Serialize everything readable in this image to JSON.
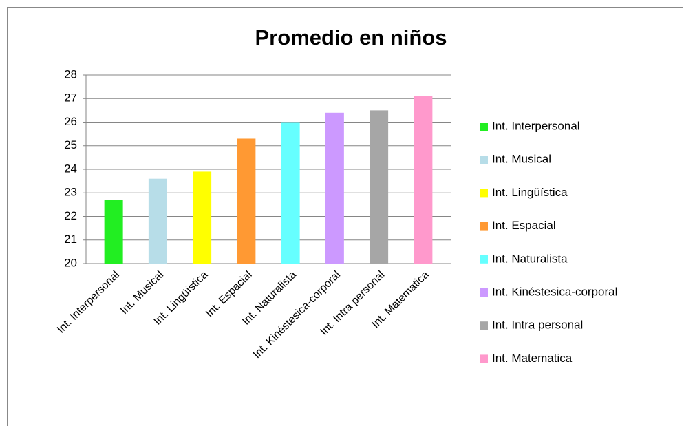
{
  "chart_data": {
    "type": "bar",
    "title": "Promedio en niños",
    "categories": [
      "Int. Interpersonal",
      "Int. Musical",
      "Int. Lingüística",
      "Int. Espacial",
      "Int. Naturalista",
      "Int. Kinéstesica-corporal",
      "Int. Intra personal",
      "Int. Matematica"
    ],
    "values": [
      22.7,
      23.6,
      23.9,
      25.3,
      26.0,
      26.4,
      26.5,
      27.1
    ],
    "colors": [
      "#22ee22",
      "#b7dde8",
      "#ffff00",
      "#ff9933",
      "#66ffff",
      "#cc99ff",
      "#a6a6a6",
      "#ff99cc"
    ],
    "ylim": [
      20,
      28
    ],
    "yticks": [
      20,
      21,
      22,
      23,
      24,
      25,
      26,
      27,
      28
    ],
    "grid": true,
    "legend": "right"
  }
}
